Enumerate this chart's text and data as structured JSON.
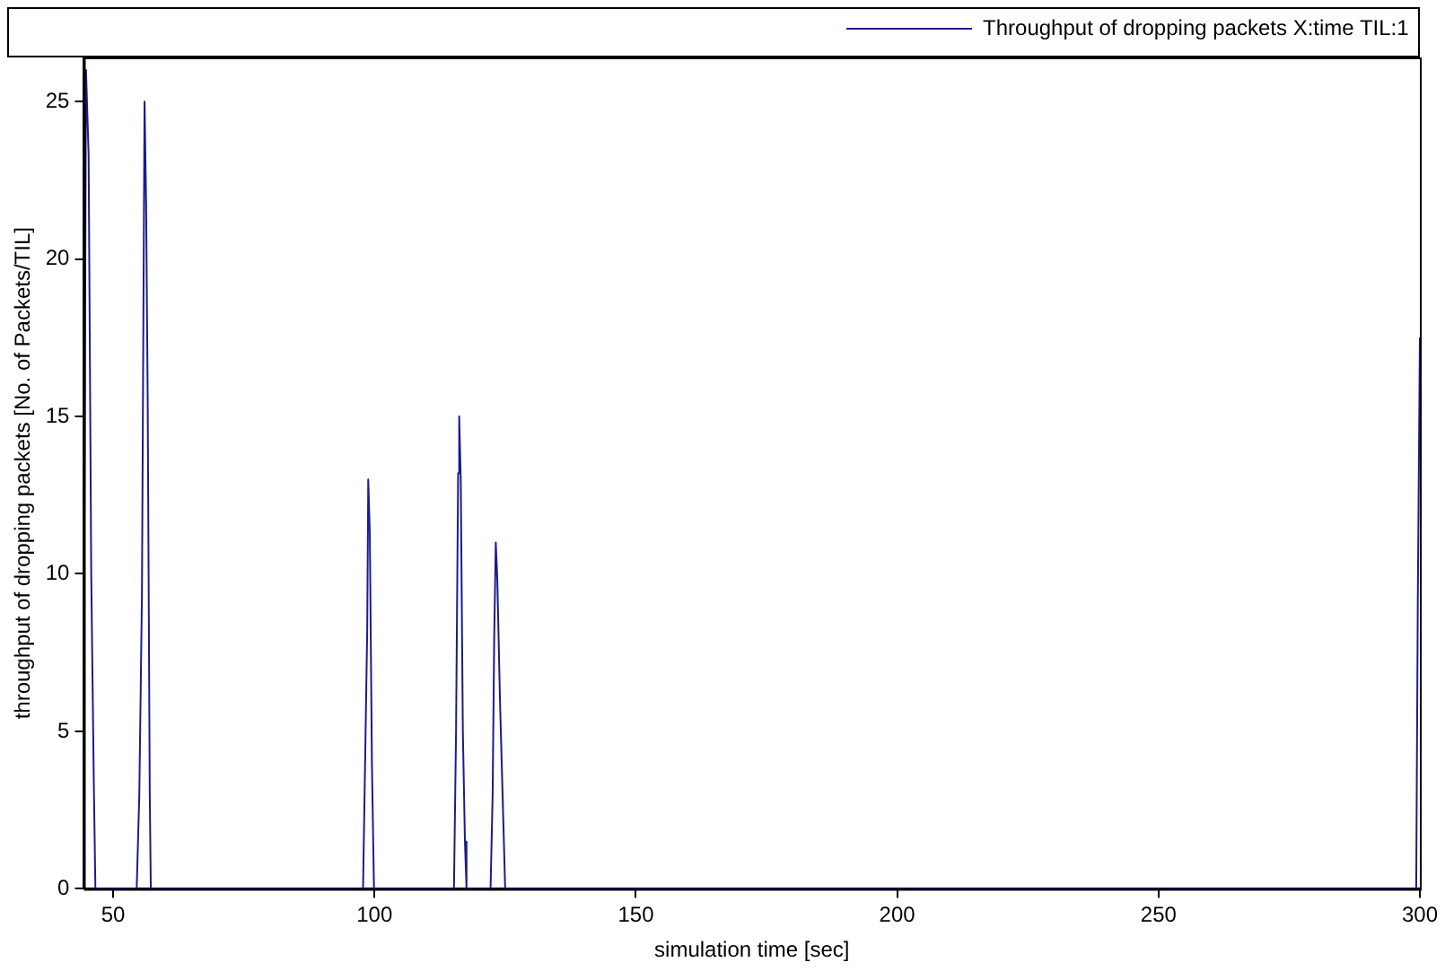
{
  "chart_data": {
    "type": "line",
    "xlabel": "simulation time [sec]",
    "ylabel": "throughput of dropping packets [No. of Packets/TIL]",
    "x": [
      44.4,
      44.8,
      45.3,
      45.8,
      46.3,
      46.6,
      54.5,
      55,
      55.5,
      56,
      56.3,
      56.6,
      57,
      57.2,
      97.8,
      98.2,
      98.6,
      98.8,
      99.1,
      99.5,
      99.9,
      115.2,
      115.6,
      116,
      116.2,
      116.5,
      116.9,
      117.3,
      117.6,
      122.2,
      122.6,
      122.9,
      123.2,
      123.5,
      124,
      124.5,
      125,
      299.3,
      299.6,
      300
    ],
    "series": [
      {
        "name": "Throughput of dropping packets X:time TIL:1",
        "color": "#1c1c8c",
        "values": [
          7.7,
          26,
          23.3,
          10,
          3.3,
          0,
          0,
          3,
          9.3,
          25,
          21.8,
          15.6,
          3,
          0,
          0,
          4,
          8.2,
          13,
          11.3,
          4,
          0,
          0,
          5,
          13.2,
          15,
          13,
          5,
          1.5,
          0,
          0,
          3,
          8,
          11,
          9.8,
          6,
          3,
          0,
          0,
          9,
          17.5
        ]
      }
    ],
    "xlim": [
      44.4,
      300
    ],
    "xticks": [
      50,
      100,
      150,
      200,
      250,
      300
    ],
    "ylim": [
      0,
      26.4
    ],
    "yticks": [
      0,
      5,
      10,
      15,
      20,
      25
    ],
    "legend": "top right",
    "grid": false,
    "marker": "none",
    "line_style": "solid"
  }
}
